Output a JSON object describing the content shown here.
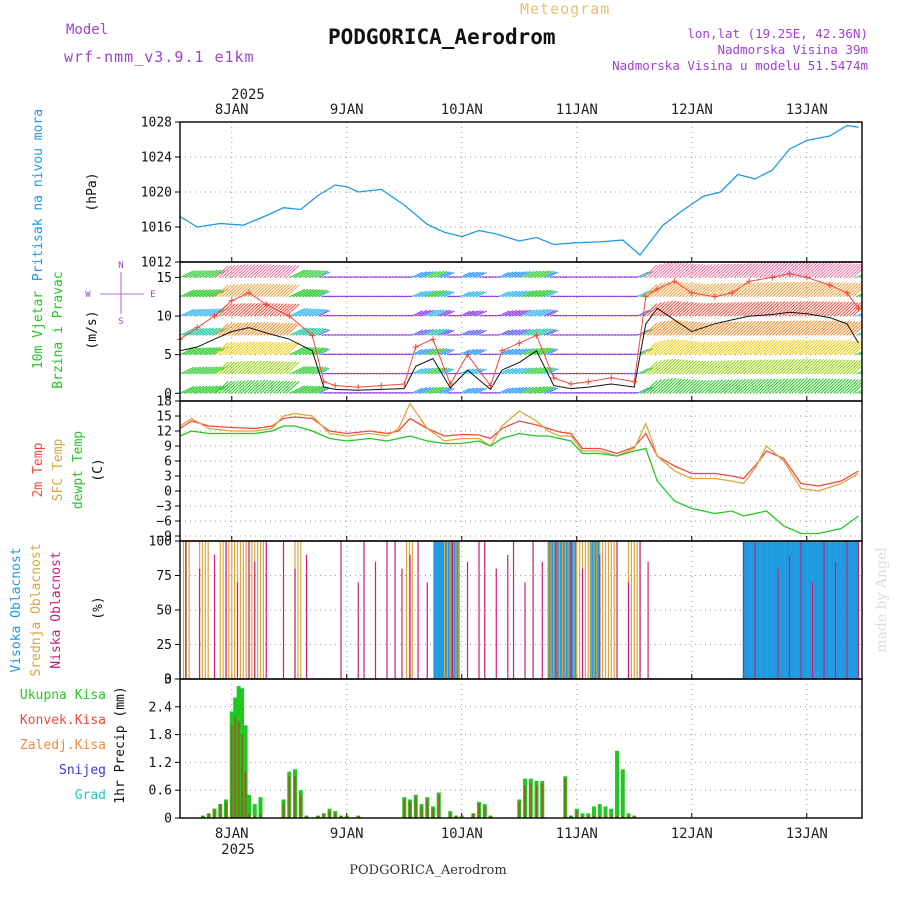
{
  "header": {
    "model_label": "Model",
    "model_name": "wrf-nmm_v3.9.1 e1km",
    "subtitle": "Meteogram",
    "station": "PODGORICA_Aerodrom",
    "coords": "lon,lat (19.25E, 42.36N)",
    "elevation": "Nadmorska Visina 39m",
    "model_elevation": "Nadmorska Visina u modelu 51.5474m",
    "footer": "PODGORICA_Aerodrom",
    "watermark": "made by Angel"
  },
  "time_axis": {
    "top_year": "2025",
    "bottom_year": "2025",
    "days": [
      "8JAN",
      "9JAN",
      "10JAN",
      "11JAN",
      "12JAN",
      "13JAN"
    ]
  },
  "panel_labels": {
    "pressure": [
      "Pritisak na nivou mora",
      "(hPa)"
    ],
    "wind": [
      "10m Vjetar",
      "Brzina i Pravac",
      "(m/s)"
    ],
    "wind_compass": [
      "N",
      "W",
      "E",
      "S"
    ],
    "temp": [
      "2m Temp",
      "SFC Temp",
      "dewpt Temp",
      "(C)"
    ],
    "cloud": [
      "Visoka Oblacnost",
      "Srednja Oblacnost",
      "Niska Oblacnost",
      "(%)"
    ],
    "precip": [
      "Ukupna Kisa",
      "Konvek.Kisa",
      "Zaledj.Kisa",
      "Snijeg",
      "Grad",
      "1hr Precip (mm)"
    ]
  },
  "colors": {
    "pressure": "#1e9be0",
    "temp2m": "#f04a3a",
    "sfc": "#d9a640",
    "dew": "#22c822",
    "high_cloud": "#1e9be0",
    "mid_cloud": "#d9a640",
    "low_cloud": "#c8207a",
    "total_precip": "#22c822",
    "conv_precip": "#8a6a20",
    "snow": "#3a3adc",
    "grad": "#20c8c8"
  },
  "chart_data": [
    {
      "type": "line",
      "panel": "pressure",
      "ylabel": "(hPa)",
      "ylim": [
        1012,
        1028
      ],
      "yticks": [
        1012,
        1016,
        1020,
        1024,
        1028
      ],
      "x_days": [
        7.55,
        7.7,
        7.9,
        8.1,
        8.3,
        8.45,
        8.6,
        8.75,
        8.9,
        9.0,
        9.1,
        9.3,
        9.5,
        9.7,
        9.85,
        10.0,
        10.15,
        10.3,
        10.5,
        10.65,
        10.8,
        11.0,
        11.2,
        11.4,
        11.55,
        11.65,
        11.75,
        11.9,
        12.1,
        12.25,
        12.4,
        12.55,
        12.7,
        12.85,
        13.0,
        13.2,
        13.35,
        13.45
      ],
      "values": [
        1017.2,
        1016.0,
        1016.4,
        1016.2,
        1017.3,
        1018.2,
        1018.0,
        1019.6,
        1020.8,
        1020.6,
        1020.0,
        1020.3,
        1018.5,
        1016.3,
        1015.4,
        1014.9,
        1015.6,
        1015.2,
        1014.4,
        1014.8,
        1014.0,
        1014.2,
        1014.3,
        1014.5,
        1012.8,
        1014.5,
        1016.2,
        1017.7,
        1019.5,
        1020.0,
        1022.0,
        1021.5,
        1022.5,
        1024.9,
        1025.9,
        1026.4,
        1027.6,
        1027.4
      ]
    },
    {
      "type": "line",
      "panel": "wind",
      "ylabel": "(m/s)",
      "ylim": [
        -1,
        17
      ],
      "yticks": [
        0,
        5,
        10,
        15
      ],
      "series": [
        {
          "name": "wind_speed",
          "x_days": [
            7.55,
            7.7,
            7.85,
            8.0,
            8.15,
            8.3,
            8.5,
            8.7,
            8.8,
            8.9,
            9.1,
            9.3,
            9.5,
            9.6,
            9.75,
            9.9,
            10.05,
            10.25,
            10.35,
            10.5,
            10.65,
            10.8,
            10.95,
            11.1,
            11.3,
            11.5,
            11.6,
            11.7,
            11.85,
            12.0,
            12.2,
            12.35,
            12.5,
            12.7,
            12.85,
            13.0,
            13.2,
            13.35,
            13.45
          ],
          "values": [
            5.5,
            6.0,
            7.0,
            8.0,
            8.5,
            7.8,
            7.0,
            5.5,
            0.8,
            0.5,
            0.4,
            0.5,
            0.6,
            3.5,
            4.5,
            0.7,
            3.0,
            0.5,
            3.0,
            4.0,
            5.5,
            1.0,
            0.6,
            0.8,
            1.2,
            0.8,
            9.0,
            11.0,
            9.5,
            8.0,
            9.0,
            9.5,
            10.0,
            10.2,
            10.5,
            10.3,
            9.8,
            9.0,
            6.5
          ]
        },
        {
          "name": "wind_gust",
          "x_days": [
            7.55,
            7.7,
            7.85,
            8.0,
            8.15,
            8.3,
            8.5,
            8.7,
            8.8,
            8.9,
            9.1,
            9.3,
            9.5,
            9.6,
            9.75,
            9.9,
            10.05,
            10.25,
            10.35,
            10.5,
            10.65,
            10.8,
            10.95,
            11.1,
            11.3,
            11.5,
            11.6,
            11.7,
            11.85,
            12.0,
            12.2,
            12.35,
            12.5,
            12.7,
            12.85,
            13.0,
            13.2,
            13.35,
            13.45
          ],
          "values": [
            7.0,
            8.5,
            10.0,
            12.0,
            13.0,
            11.5,
            10.0,
            7.5,
            1.5,
            1.0,
            0.8,
            1.0,
            1.2,
            6.0,
            7.0,
            1.2,
            5.0,
            1.0,
            5.5,
            6.5,
            7.5,
            2.0,
            1.2,
            1.5,
            2.0,
            1.5,
            12.5,
            13.5,
            14.5,
            13.0,
            12.5,
            13.0,
            14.5,
            15.0,
            15.5,
            15.0,
            14.0,
            13.0,
            11.0
          ]
        }
      ]
    },
    {
      "type": "line",
      "panel": "temperature",
      "ylabel": "(C)",
      "ylim": [
        -10,
        18
      ],
      "yticks": [
        -9,
        -6,
        -3,
        0,
        3,
        6,
        9,
        12,
        15,
        18
      ],
      "series": [
        {
          "name": "2m Temp",
          "x_days": [
            7.55,
            7.65,
            7.8,
            8.0,
            8.2,
            8.35,
            8.45,
            8.55,
            8.7,
            8.85,
            9.0,
            9.2,
            9.35,
            9.45,
            9.55,
            9.7,
            9.85,
            10.0,
            10.15,
            10.25,
            10.35,
            10.5,
            10.65,
            10.75,
            10.85,
            10.95,
            11.05,
            11.2,
            11.35,
            11.5,
            11.6,
            11.7,
            11.85,
            12.0,
            12.2,
            12.35,
            12.45,
            12.55,
            12.65,
            12.8,
            12.95,
            13.1,
            13.3,
            13.45
          ],
          "values": [
            12.5,
            14.0,
            13.0,
            12.7,
            12.5,
            13.0,
            14.5,
            14.8,
            14.5,
            12.0,
            11.5,
            12.0,
            11.5,
            12.0,
            14.5,
            12.5,
            11.0,
            11.3,
            11.2,
            10.5,
            12.5,
            14.0,
            13.2,
            12.5,
            11.8,
            11.5,
            8.5,
            8.5,
            7.5,
            8.8,
            11.5,
            7.0,
            5.0,
            3.5,
            3.5,
            3.0,
            2.5,
            5.0,
            8.0,
            6.5,
            1.5,
            1.0,
            2.0,
            4.0
          ]
        },
        {
          "name": "SFC Temp",
          "x_days": [
            7.55,
            7.65,
            7.8,
            8.0,
            8.2,
            8.35,
            8.45,
            8.55,
            8.7,
            8.85,
            9.0,
            9.2,
            9.35,
            9.45,
            9.55,
            9.7,
            9.85,
            10.0,
            10.15,
            10.25,
            10.35,
            10.5,
            10.65,
            10.75,
            10.85,
            10.95,
            11.05,
            11.2,
            11.35,
            11.5,
            11.6,
            11.7,
            11.85,
            12.0,
            12.2,
            12.35,
            12.45,
            12.55,
            12.65,
            12.8,
            12.95,
            13.1,
            13.3,
            13.45
          ],
          "values": [
            13.0,
            14.5,
            12.5,
            12.0,
            12.0,
            12.5,
            15.0,
            15.5,
            15.0,
            11.5,
            11.0,
            11.5,
            11.0,
            12.5,
            17.5,
            12.5,
            10.0,
            10.5,
            10.5,
            9.0,
            13.0,
            16.0,
            14.0,
            12.0,
            11.0,
            11.0,
            8.0,
            8.0,
            7.0,
            8.5,
            13.5,
            7.0,
            4.0,
            2.5,
            2.5,
            2.0,
            1.5,
            4.5,
            9.0,
            6.0,
            0.5,
            0.0,
            1.5,
            3.5
          ]
        },
        {
          "name": "dewpt Temp",
          "x_days": [
            7.55,
            7.65,
            7.8,
            8.0,
            8.2,
            8.35,
            8.45,
            8.55,
            8.7,
            8.85,
            9.0,
            9.2,
            9.35,
            9.45,
            9.55,
            9.7,
            9.85,
            10.0,
            10.15,
            10.25,
            10.35,
            10.5,
            10.65,
            10.75,
            10.85,
            10.95,
            11.05,
            11.2,
            11.35,
            11.5,
            11.6,
            11.7,
            11.85,
            12.0,
            12.2,
            12.35,
            12.45,
            12.55,
            12.65,
            12.8,
            12.95,
            13.1,
            13.3,
            13.45
          ],
          "values": [
            11.0,
            12.0,
            11.5,
            11.5,
            11.5,
            12.0,
            13.0,
            13.0,
            12.0,
            10.5,
            10.0,
            10.5,
            10.0,
            10.5,
            11.0,
            10.0,
            9.5,
            9.5,
            10.0,
            9.0,
            10.5,
            11.5,
            11.0,
            11.0,
            10.5,
            10.0,
            7.5,
            7.5,
            7.0,
            8.0,
            8.5,
            2.0,
            -2.0,
            -3.5,
            -4.5,
            -4.0,
            -5.0,
            -4.5,
            -4.0,
            -7.0,
            -8.5,
            -8.5,
            -7.5,
            -5.0
          ]
        }
      ]
    },
    {
      "type": "bar",
      "panel": "cloud",
      "ylabel": "(%)",
      "ylim": [
        0,
        100
      ],
      "yticks": [
        0,
        25,
        50,
        75,
        100
      ],
      "high_ranges_days": [
        [
          9.76,
          9.98
        ],
        [
          10.76,
          11.0
        ],
        [
          11.12,
          11.2
        ],
        [
          12.45,
          13.45
        ]
      ],
      "mid_ranges_days": [
        [
          7.58,
          7.65
        ],
        [
          7.72,
          7.8
        ],
        [
          7.9,
          8.3
        ],
        [
          8.55,
          8.62
        ],
        [
          9.52,
          9.58
        ],
        [
          9.85,
          10.0
        ],
        [
          10.75,
          11.35
        ],
        [
          11.45,
          11.55
        ]
      ],
      "low_bars_days": [
        7.6,
        7.72,
        7.85,
        7.95,
        8.05,
        8.15,
        8.2,
        8.3,
        8.45,
        8.55,
        8.65,
        8.95,
        9.1,
        9.15,
        9.25,
        9.35,
        9.42,
        9.48,
        9.55,
        9.62,
        9.7,
        9.92,
        10.05,
        10.15,
        10.2,
        10.3,
        10.4,
        10.45,
        10.55,
        10.62,
        10.7,
        10.82,
        10.95,
        11.05,
        11.2,
        11.35,
        11.45,
        11.55,
        11.62,
        12.45,
        12.55,
        12.75,
        12.85,
        12.95,
        13.05,
        13.15,
        13.25,
        13.35,
        13.45
      ]
    },
    {
      "type": "bar",
      "panel": "precipitation",
      "ylabel": "1hr Precip (mm)",
      "ylim": [
        0,
        3
      ],
      "yticks": [
        0,
        0.6,
        1.2,
        1.8,
        2.4,
        3
      ],
      "x_days": [
        7.75,
        7.8,
        7.85,
        7.9,
        7.95,
        8.0,
        8.03,
        8.06,
        8.09,
        8.12,
        8.15,
        8.2,
        8.25,
        8.45,
        8.5,
        8.55,
        8.6,
        8.65,
        8.75,
        8.8,
        8.85,
        8.9,
        8.95,
        9.0,
        9.1,
        9.5,
        9.55,
        9.6,
        9.65,
        9.7,
        9.75,
        9.8,
        9.9,
        9.95,
        10.0,
        10.1,
        10.15,
        10.2,
        10.25,
        10.5,
        10.55,
        10.6,
        10.65,
        10.7,
        10.9,
        10.95,
        11.0,
        11.05,
        11.1,
        11.15,
        11.2,
        11.25,
        11.3,
        11.35,
        11.4,
        11.45,
        11.5
      ],
      "values": [
        0.05,
        0.1,
        0.2,
        0.3,
        0.4,
        2.3,
        2.6,
        2.85,
        2.8,
        2.0,
        0.5,
        0.3,
        0.45,
        0.4,
        1.0,
        1.05,
        0.6,
        0.05,
        0.05,
        0.1,
        0.2,
        0.15,
        0.05,
        0.05,
        0.05,
        0.45,
        0.4,
        0.5,
        0.3,
        0.45,
        0.25,
        0.55,
        0.15,
        0.05,
        0.05,
        0.1,
        0.35,
        0.3,
        0.05,
        0.4,
        0.85,
        0.85,
        0.8,
        0.8,
        0.9,
        0.05,
        0.2,
        0.1,
        0.1,
        0.25,
        0.3,
        0.25,
        0.2,
        1.45,
        1.05,
        0.1,
        0.05
      ],
      "conv_values": [
        0.05,
        0.1,
        0.2,
        0.3,
        0.35,
        2.0,
        2.2,
        2.1,
        1.8,
        1.0,
        0.1,
        0.05,
        0.1,
        0.3,
        0.9,
        0.9,
        0.5,
        0.05,
        0.05,
        0.1,
        0.15,
        0.1,
        0.05,
        0.05,
        0.05,
        0.4,
        0.35,
        0.45,
        0.25,
        0.4,
        0.2,
        0.5,
        0.1,
        0.05,
        0.05,
        0.1,
        0.3,
        0.25,
        0.05,
        0.35,
        0.7,
        0.75,
        0.7,
        0.75,
        0.85,
        0.05,
        0.15,
        0.05,
        0.05,
        0.05,
        0.05,
        0.05,
        0.05,
        0.05,
        0.05,
        0.05,
        0.05
      ]
    }
  ]
}
